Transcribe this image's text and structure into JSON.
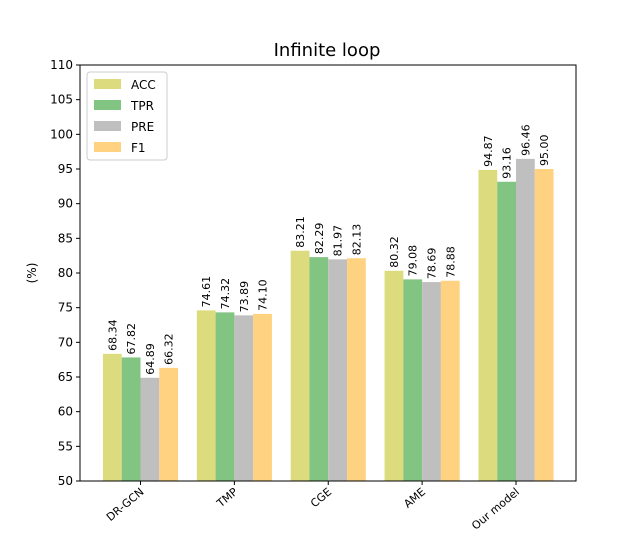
{
  "chart_data": {
    "type": "bar",
    "title": "Infinite loop",
    "xlabel": "",
    "ylabel": "(%)",
    "ylim": [
      50,
      110
    ],
    "yticks": [
      50,
      55,
      60,
      65,
      70,
      75,
      80,
      85,
      90,
      95,
      100,
      105,
      110
    ],
    "categories": [
      "DR-GCN",
      "TMP",
      "CGE",
      "AME",
      "Our model"
    ],
    "series": [
      {
        "name": "ACC",
        "color": "#dcdc7e",
        "values": [
          68.34,
          74.61,
          83.21,
          80.32,
          94.87
        ],
        "labels": [
          "68.34",
          "74.61",
          "83.21",
          "80.32",
          "94.87"
        ]
      },
      {
        "name": "TPR",
        "color": "#82c482",
        "values": [
          67.82,
          74.32,
          82.29,
          79.08,
          93.16
        ],
        "labels": [
          "67.82",
          "74.32",
          "82.29",
          "79.08",
          "93.16"
        ]
      },
      {
        "name": "PRE",
        "color": "#bfbfbf",
        "values": [
          64.89,
          73.89,
          81.97,
          78.69,
          96.46
        ],
        "labels": [
          "64.89",
          "73.89",
          "81.97",
          "78.69",
          "96.46"
        ]
      },
      {
        "name": "F1",
        "color": "#fed280",
        "values": [
          66.32,
          74.1,
          82.13,
          78.88,
          95.0
        ],
        "labels": [
          "66.32",
          "74.10",
          "82.13",
          "78.88",
          "95.00"
        ]
      }
    ],
    "legend": "top-left",
    "grid": false
  }
}
